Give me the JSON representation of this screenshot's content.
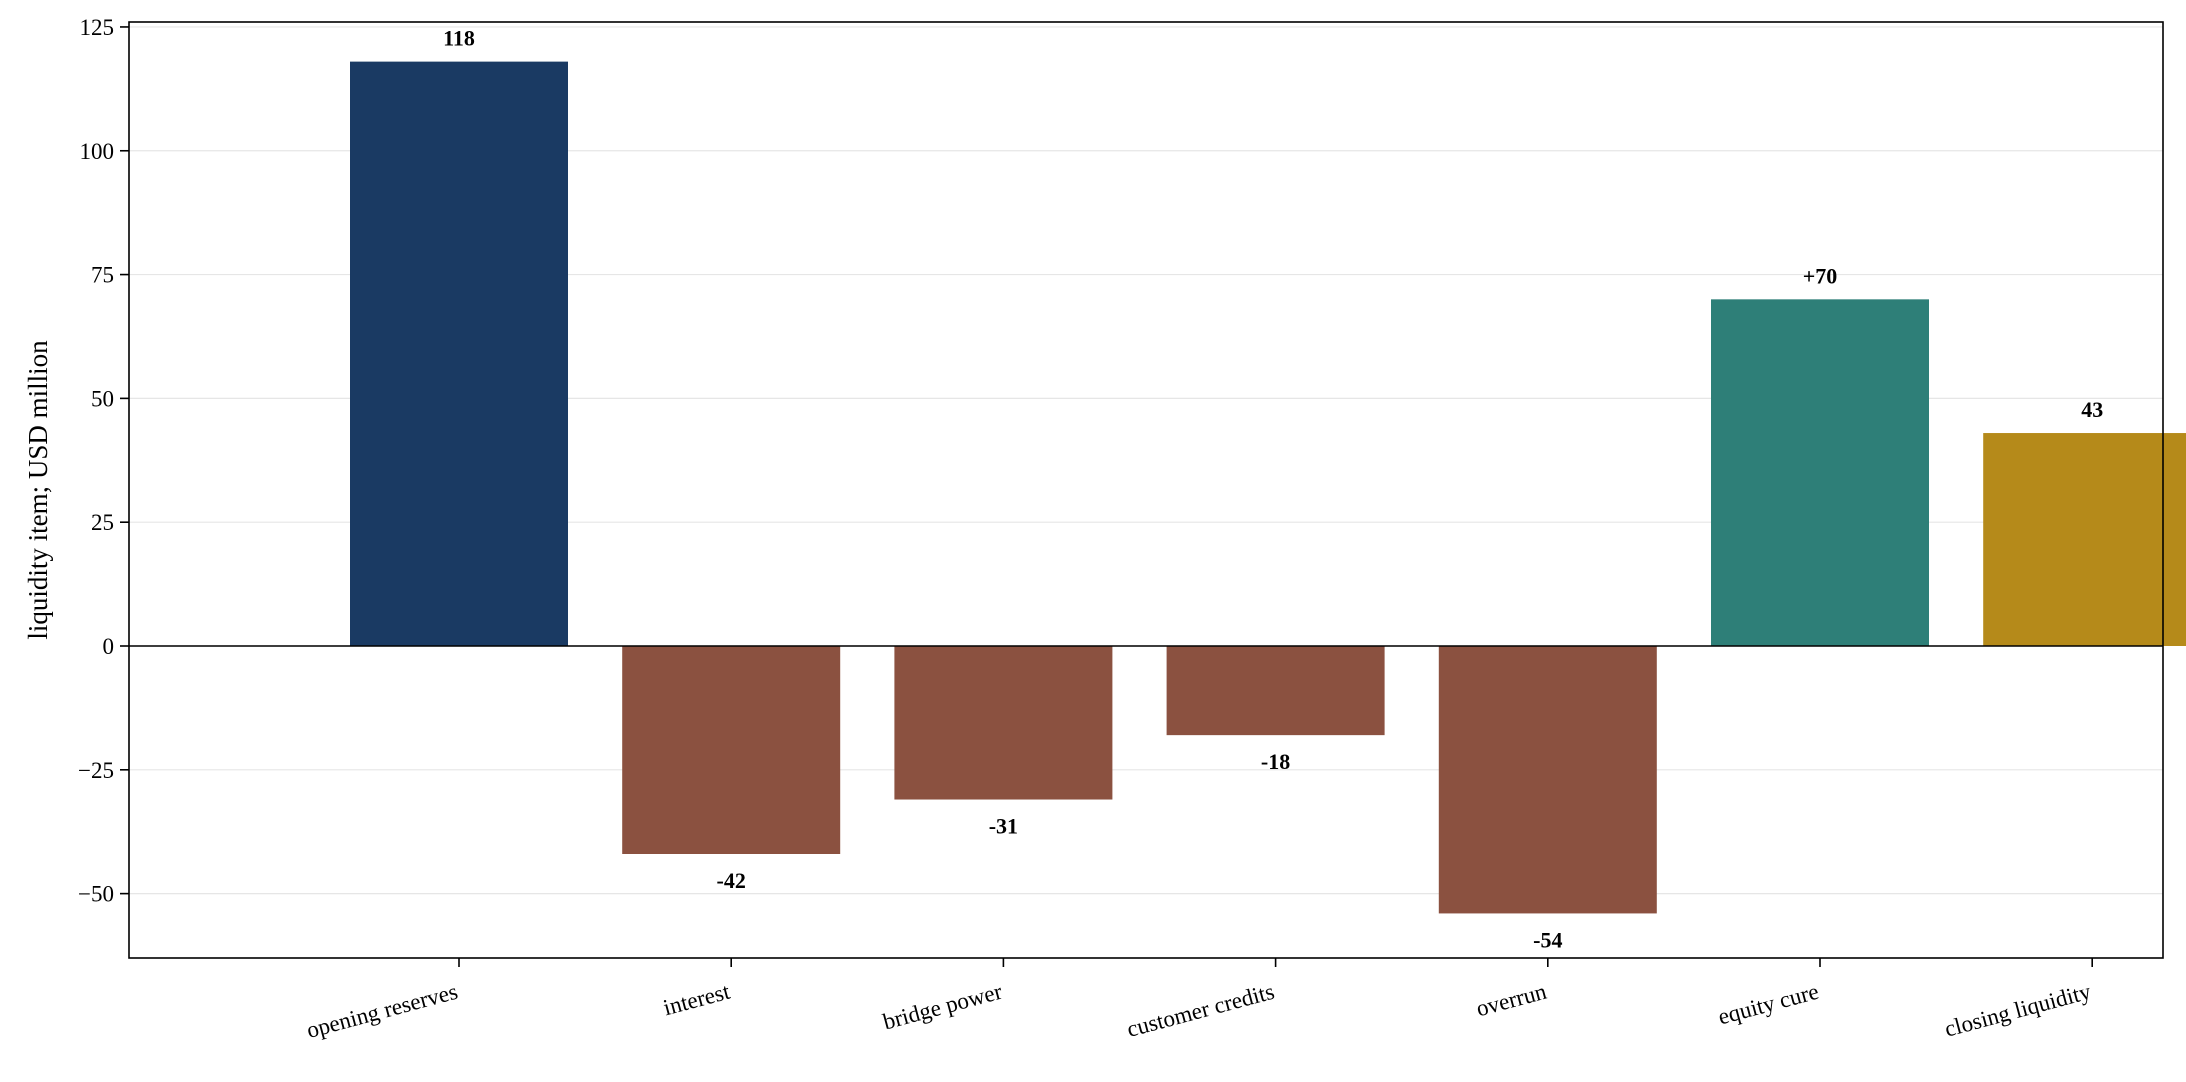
{
  "chart_data": {
    "type": "bar",
    "title": "",
    "xlabel": "",
    "ylabel": "liquidity item; USD million",
    "categories": [
      "opening reserves",
      "interest",
      "bridge power",
      "customer credits",
      "overrun",
      "equity cure",
      "closing liquidity"
    ],
    "values": [
      118,
      -42,
      -31,
      -18,
      -54,
      70,
      43
    ],
    "value_labels": [
      "118",
      "-42",
      "-31",
      "-18",
      "-54",
      "+70",
      "43"
    ],
    "bar_roles": [
      "start",
      "negative",
      "negative",
      "negative",
      "negative",
      "positive",
      "end"
    ],
    "ylim": [
      -63,
      126
    ],
    "yticks": [
      -50,
      -25,
      0,
      25,
      50,
      75,
      100,
      125
    ],
    "ytick_labels": [
      "−50",
      "−25",
      "0",
      "25",
      "50",
      "75",
      "100",
      "125"
    ],
    "grid": "horizontal",
    "legend": "none",
    "colors": {
      "start": "#1a3a63",
      "negative": "#8b5140",
      "positive": "#2e7f78",
      "end": "#b58a1a",
      "grid": "#e6e6e6",
      "axis": "#000000"
    }
  }
}
